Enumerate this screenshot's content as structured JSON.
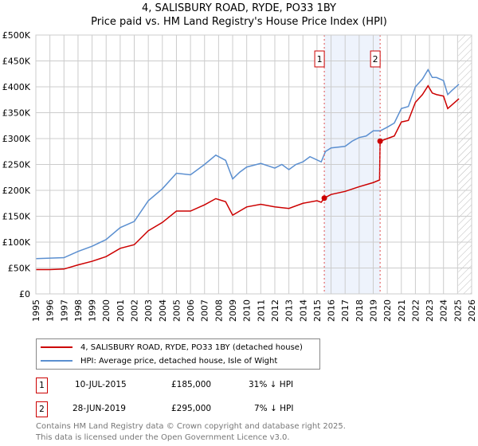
{
  "chart_data": {
    "type": "line",
    "title": "4, SALISBURY ROAD, RYDE, PO33 1BY",
    "subtitle": "Price paid vs. HM Land Registry's House Price Index (HPI)",
    "xlim": [
      1995,
      2026
    ],
    "ylim": [
      0,
      500000
    ],
    "x_ticks": [
      "1995",
      "1996",
      "1997",
      "1998",
      "1999",
      "2000",
      "2001",
      "2002",
      "2003",
      "2004",
      "2005",
      "2006",
      "2007",
      "2008",
      "2009",
      "2010",
      "2011",
      "2012",
      "2013",
      "2014",
      "2015",
      "2016",
      "2017",
      "2018",
      "2019",
      "2020",
      "2021",
      "2022",
      "2023",
      "2024",
      "2025",
      "2026"
    ],
    "y_ticks": [
      {
        "v": 0,
        "label": "£0"
      },
      {
        "v": 50000,
        "label": "£50K"
      },
      {
        "v": 100000,
        "label": "£100K"
      },
      {
        "v": 150000,
        "label": "£150K"
      },
      {
        "v": 200000,
        "label": "£200K"
      },
      {
        "v": 250000,
        "label": "£250K"
      },
      {
        "v": 300000,
        "label": "£300K"
      },
      {
        "v": 350000,
        "label": "£350K"
      },
      {
        "v": 400000,
        "label": "£400K"
      },
      {
        "v": 450000,
        "label": "£450K"
      },
      {
        "v": 500000,
        "label": "£500K"
      }
    ],
    "grid": true,
    "shaded_range": [
      2015.52,
      2019.49
    ],
    "forecast_hatch_from": 2025.05,
    "series": [
      {
        "name": "4, SALISBURY ROAD, RYDE, PO33 1BY (detached house)",
        "color": "#cc0000",
        "points": [
          [
            1995,
            47
          ],
          [
            1996,
            47
          ],
          [
            1997,
            48
          ],
          [
            1998,
            56
          ],
          [
            1999,
            63
          ],
          [
            2000,
            72
          ],
          [
            2001,
            88
          ],
          [
            2002,
            95
          ],
          [
            2003,
            122
          ],
          [
            2004,
            138
          ],
          [
            2005,
            160
          ],
          [
            2006,
            160
          ],
          [
            2007,
            172
          ],
          [
            2007.8,
            184
          ],
          [
            2008.5,
            178
          ],
          [
            2009,
            152
          ],
          [
            2009.5,
            160
          ],
          [
            2010,
            168
          ],
          [
            2011,
            173
          ],
          [
            2012,
            168
          ],
          [
            2013,
            165
          ],
          [
            2014,
            175
          ],
          [
            2015,
            180
          ],
          [
            2015.3,
            177
          ],
          [
            2015.52,
            185
          ],
          [
            2016,
            192
          ],
          [
            2017,
            198
          ],
          [
            2018,
            207
          ],
          [
            2019,
            215
          ],
          [
            2019.45,
            220
          ],
          [
            2019.49,
            295
          ],
          [
            2020,
            300
          ],
          [
            2020.5,
            305
          ],
          [
            2021,
            332
          ],
          [
            2021.5,
            335
          ],
          [
            2022,
            370
          ],
          [
            2022.5,
            385
          ],
          [
            2022.9,
            402
          ],
          [
            2023.2,
            388
          ],
          [
            2023.5,
            385
          ],
          [
            2024,
            382
          ],
          [
            2024.3,
            358
          ],
          [
            2025.1,
            377
          ]
        ]
      },
      {
        "name": "HPI: Average price, detached house, Isle of Wight",
        "color": "#5b8fd0",
        "points": [
          [
            1995,
            68
          ],
          [
            1996,
            69
          ],
          [
            1997,
            70
          ],
          [
            1998,
            82
          ],
          [
            1999,
            92
          ],
          [
            2000,
            105
          ],
          [
            2001,
            128
          ],
          [
            2002,
            140
          ],
          [
            2003,
            180
          ],
          [
            2004,
            203
          ],
          [
            2005,
            233
          ],
          [
            2006,
            230
          ],
          [
            2007,
            250
          ],
          [
            2007.8,
            268
          ],
          [
            2008.5,
            258
          ],
          [
            2009,
            222
          ],
          [
            2009.5,
            235
          ],
          [
            2010,
            245
          ],
          [
            2011,
            252
          ],
          [
            2012,
            243
          ],
          [
            2012.5,
            250
          ],
          [
            2013,
            240
          ],
          [
            2013.5,
            250
          ],
          [
            2014,
            255
          ],
          [
            2014.5,
            265
          ],
          [
            2015.3,
            255
          ],
          [
            2015.6,
            275
          ],
          [
            2016,
            282
          ],
          [
            2017,
            285
          ],
          [
            2017.5,
            295
          ],
          [
            2018,
            302
          ],
          [
            2018.5,
            305
          ],
          [
            2019,
            315
          ],
          [
            2019.5,
            315
          ],
          [
            2020,
            322
          ],
          [
            2020.5,
            330
          ],
          [
            2021,
            358
          ],
          [
            2021.5,
            362
          ],
          [
            2022,
            400
          ],
          [
            2022.5,
            415
          ],
          [
            2022.9,
            433
          ],
          [
            2023.2,
            418
          ],
          [
            2023.5,
            418
          ],
          [
            2024,
            412
          ],
          [
            2024.3,
            385
          ],
          [
            2024.6,
            393
          ],
          [
            2025.1,
            405
          ]
        ]
      }
    ],
    "markers": [
      {
        "label": "1",
        "x": 2015.52,
        "y": 185
      },
      {
        "label": "2",
        "x": 2019.49,
        "y": 295
      }
    ]
  },
  "legend": {
    "red": "4, SALISBURY ROAD, RYDE, PO33 1BY (detached house)",
    "blue": "HPI: Average price, detached house, Isle of Wight"
  },
  "transactions": [
    {
      "num": "1",
      "date": "10-JUL-2015",
      "price": "£185,000",
      "hpi": "31% ↓ HPI"
    },
    {
      "num": "2",
      "date": "28-JUN-2019",
      "price": "£295,000",
      "hpi": "7% ↓ HPI"
    }
  ],
  "footer": {
    "line1": "Contains HM Land Registry data © Crown copyright and database right 2025.",
    "line2": "This data is licensed under the Open Government Licence v3.0."
  }
}
